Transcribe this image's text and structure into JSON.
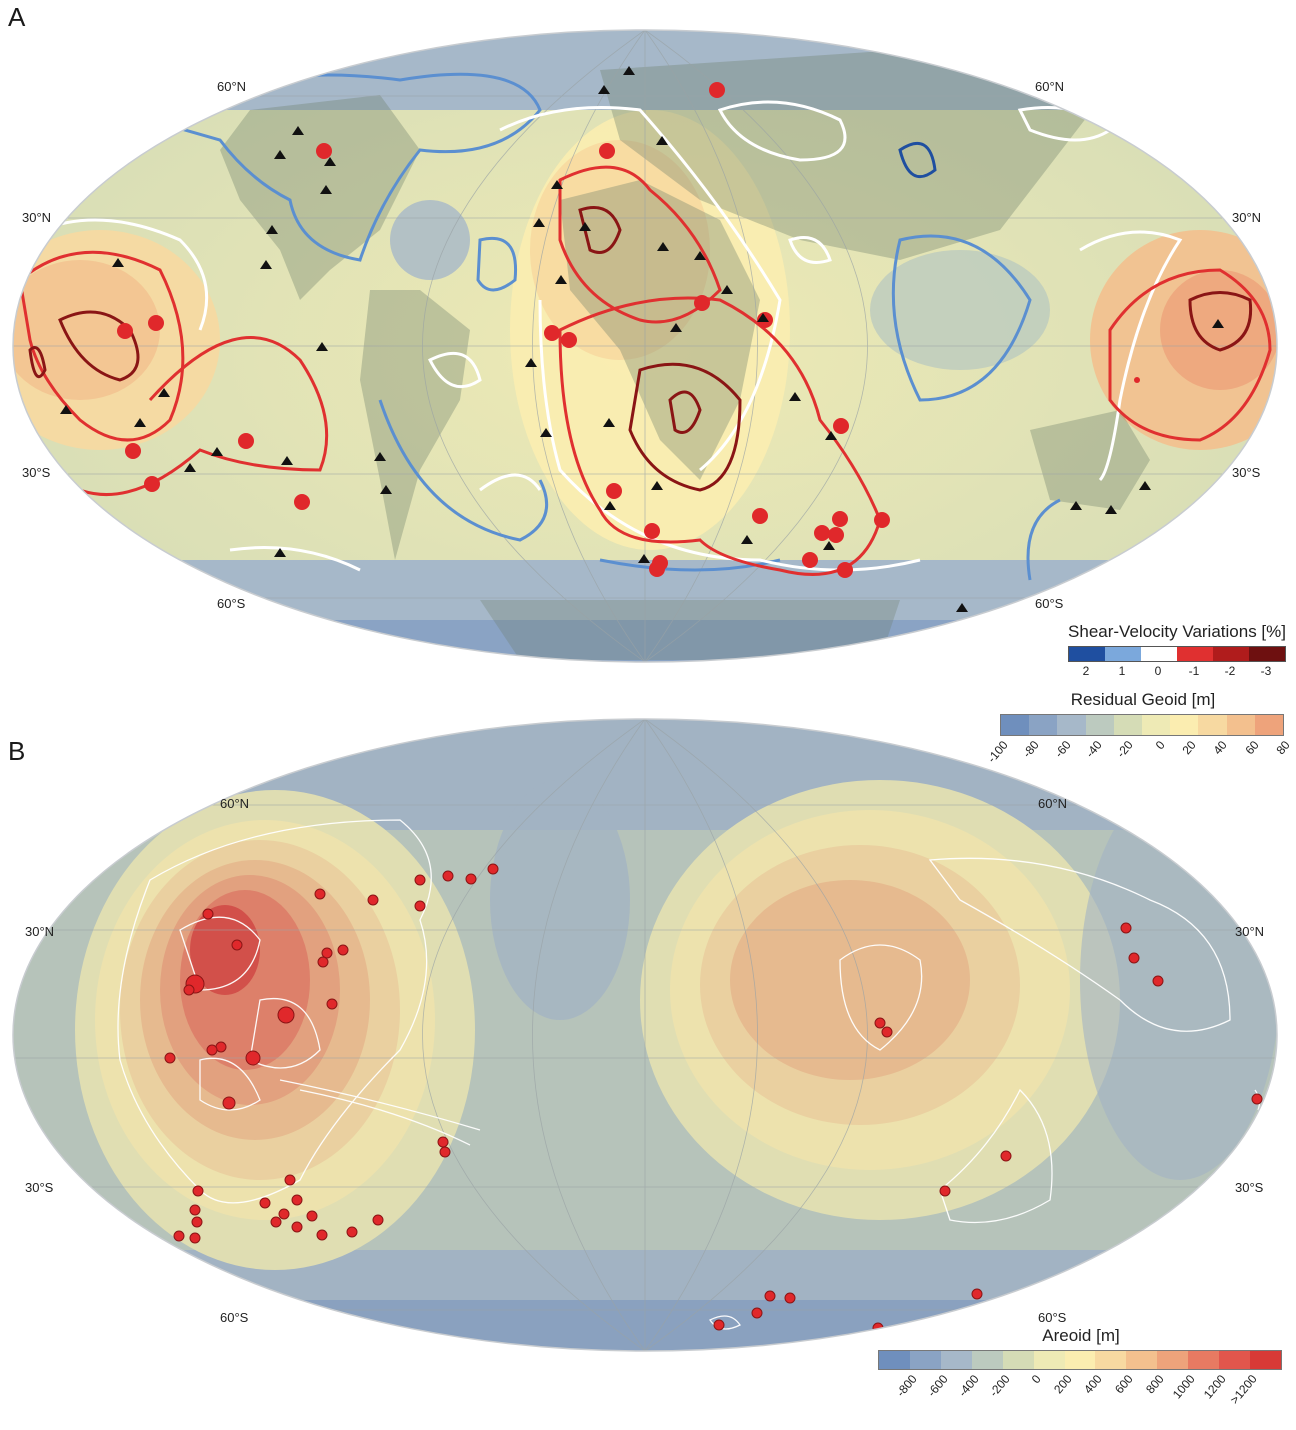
{
  "panel_a": {
    "letter": "A",
    "lat_labels": {
      "n60_left": "60°N",
      "n60_right": "60°N",
      "n30_left": "30°N",
      "n30_right": "30°N",
      "s30_left": "30°S",
      "s30_right": "30°S",
      "s60_left": "60°S",
      "s60_right": "60°S"
    },
    "shear_legend": {
      "title": "Shear-Velocity Variations [%]",
      "ticks": [
        "2",
        "1",
        "0",
        "-1",
        "-2",
        "-3"
      ],
      "colors": [
        "#1f4fa0",
        "#7ba8dc",
        "#ffffff",
        "#e03030",
        "#b01c1c",
        "#6e1010"
      ]
    },
    "geoid_legend": {
      "title": "Residual Geoid [m]",
      "ticks": [
        "-100",
        "-80",
        "-60",
        "-40",
        "-20",
        "0",
        "20",
        "40",
        "60",
        "80"
      ],
      "colors": [
        "#6f8fbd",
        "#8aa3c4",
        "#a6b8c9",
        "#bccabf",
        "#d5dcb6",
        "#eeeab5",
        "#fbedb0",
        "#f7d9a1",
        "#f3c08e",
        "#eea37b"
      ]
    }
  },
  "panel_b": {
    "letter": "B",
    "lat_labels": {
      "n60_left": "60°N",
      "n60_right": "60°N",
      "n30_left": "30°N",
      "n30_right": "30°N",
      "s30_left": "30°S",
      "s30_right": "30°S",
      "s60_left": "60°S",
      "s60_right": "60°S"
    },
    "areoid_legend": {
      "title": "Areoid [m]",
      "ticks": [
        "-800",
        "-600",
        "-400",
        "-200",
        "0",
        "200",
        "400",
        "600",
        "800",
        "1000",
        "1200",
        ">1200"
      ],
      "colors": [
        "#6f8fbd",
        "#8aa3c4",
        "#a6b8c9",
        "#bccabf",
        "#d5dcb6",
        "#eeeab5",
        "#fbedb0",
        "#f7d9a1",
        "#f3c08e",
        "#eea37b",
        "#e87a62",
        "#e2564c",
        "#d83a36"
      ]
    }
  }
}
